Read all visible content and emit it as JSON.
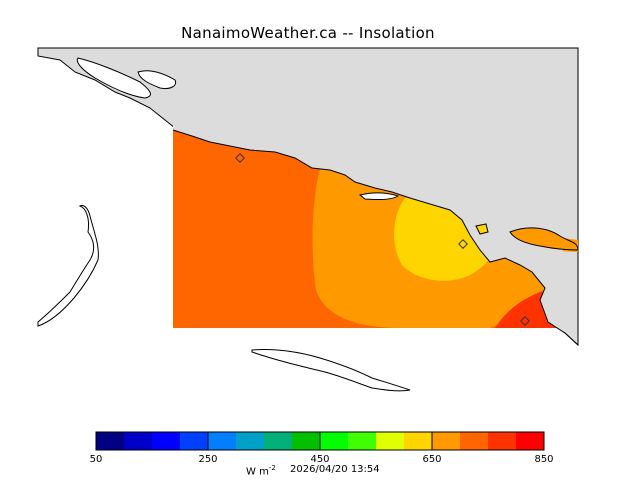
{
  "title": "NanaimoWeather.ca -- Insolation",
  "colors": {
    "land": "#dcdcdc",
    "water": "#ffffff",
    "coast": "#000000",
    "level_600": "#ff6600",
    "level_650": "#ff9900",
    "level_700": "#ffd500",
    "level_800": "#ff3300"
  },
  "colorbar": {
    "colors": [
      "#000080",
      "#0000c8",
      "#0000ff",
      "#0040ff",
      "#0080ff",
      "#00a0c8",
      "#00b078",
      "#00c000",
      "#00ff00",
      "#40ff00",
      "#e0ff00",
      "#ffd500",
      "#ff9900",
      "#ff6600",
      "#ff3300",
      "#ff0000"
    ],
    "tick_labels": [
      "50",
      "250",
      "450",
      "650",
      "850"
    ],
    "units_text": "W m",
    "units_exp": "-2",
    "timestamp": "2026/04/20 13:54"
  }
}
